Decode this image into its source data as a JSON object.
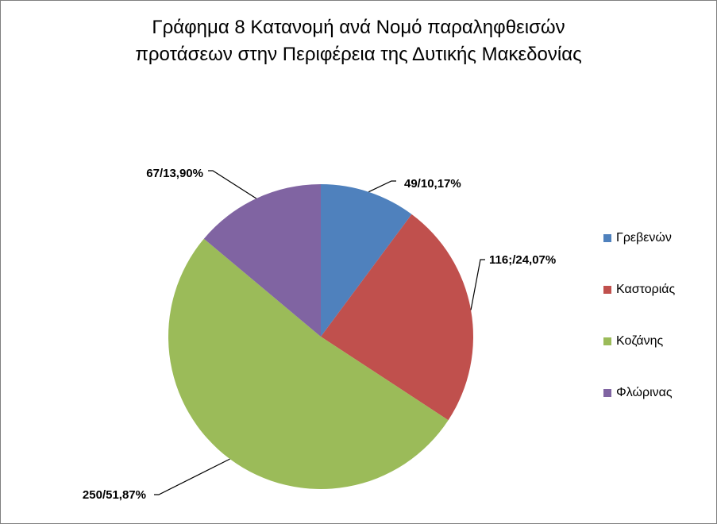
{
  "chart_data": {
    "type": "pie",
    "title_lines": [
      "Γράφημα 8 Κατανομή ανά Νομό παραληφθεισών",
      "προτάσεων στην Περιφέρεια της Δυτικής Μακεδονίας"
    ],
    "categories": [
      "Γρεβενών",
      "Καστοριάς",
      "Κοζάνης",
      "Φλώρινας"
    ],
    "values": [
      49,
      116,
      250,
      67
    ],
    "percentages": [
      10.17,
      24.07,
      51.87,
      13.9
    ],
    "data_labels": [
      "49/10,17%",
      "116;/24,07%",
      "250/51,87%",
      "67/13,90%"
    ],
    "colors": [
      "#4F81BD",
      "#C0504D",
      "#9BBB59",
      "#8064A2"
    ],
    "legend_position": "right",
    "start_angle": "12 o'clock",
    "direction": "clockwise"
  }
}
